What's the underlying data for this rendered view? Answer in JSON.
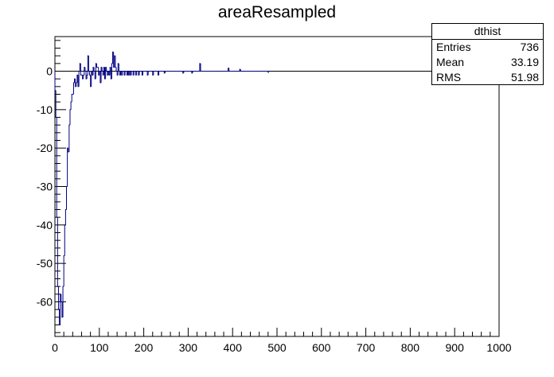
{
  "chart_data": {
    "type": "histogram",
    "title": "areaResampled",
    "xlabel": "",
    "ylabel": "",
    "xlim": [
      0,
      1000
    ],
    "ylim": [
      -69,
      9
    ],
    "x_ticks": [
      "0",
      "100",
      "200",
      "300",
      "400",
      "500",
      "600",
      "700",
      "800",
      "900",
      "1000"
    ],
    "y_ticks": [
      "-60",
      "-50",
      "-40",
      "-30",
      "-20",
      "-10",
      "0"
    ],
    "line_color": "#000080",
    "bin_width": 2,
    "bins": [
      [
        0,
        -5
      ],
      [
        2,
        -12
      ],
      [
        4,
        -38
      ],
      [
        6,
        -56
      ],
      [
        8,
        -62
      ],
      [
        10,
        -66
      ],
      [
        12,
        -58
      ],
      [
        14,
        -60
      ],
      [
        16,
        -64
      ],
      [
        18,
        -56
      ],
      [
        20,
        -48
      ],
      [
        22,
        -40
      ],
      [
        24,
        -36
      ],
      [
        26,
        -30
      ],
      [
        28,
        -20
      ],
      [
        30,
        -21
      ],
      [
        32,
        -14
      ],
      [
        34,
        -10
      ],
      [
        36,
        -8
      ],
      [
        38,
        -6
      ],
      [
        40,
        -6
      ],
      [
        42,
        -3
      ],
      [
        44,
        -2
      ],
      [
        46,
        -4
      ],
      [
        48,
        -3
      ],
      [
        50,
        -1
      ],
      [
        52,
        -4
      ],
      [
        54,
        0
      ],
      [
        56,
        2
      ],
      [
        58,
        -1
      ],
      [
        60,
        -1
      ],
      [
        62,
        -2
      ],
      [
        64,
        -1
      ],
      [
        66,
        1
      ],
      [
        68,
        0
      ],
      [
        70,
        -2
      ],
      [
        72,
        -1
      ],
      [
        74,
        4
      ],
      [
        76,
        0
      ],
      [
        78,
        -1
      ],
      [
        80,
        -4
      ],
      [
        82,
        0
      ],
      [
        84,
        -1
      ],
      [
        86,
        1
      ],
      [
        88,
        0
      ],
      [
        90,
        -2
      ],
      [
        92,
        2
      ],
      [
        94,
        1
      ],
      [
        96,
        1
      ],
      [
        98,
        -1
      ],
      [
        100,
        0
      ],
      [
        102,
        -3
      ],
      [
        104,
        1
      ],
      [
        106,
        0
      ],
      [
        108,
        -1
      ],
      [
        110,
        1
      ],
      [
        112,
        -2
      ],
      [
        114,
        1
      ],
      [
        116,
        0
      ],
      [
        118,
        -1
      ],
      [
        120,
        0
      ],
      [
        122,
        -1
      ],
      [
        124,
        1
      ],
      [
        126,
        -2
      ],
      [
        128,
        2
      ],
      [
        130,
        5
      ],
      [
        132,
        1
      ],
      [
        134,
        4
      ],
      [
        136,
        1
      ],
      [
        138,
        0
      ],
      [
        140,
        -1
      ],
      [
        142,
        2
      ],
      [
        144,
        0
      ],
      [
        146,
        -1
      ],
      [
        148,
        0
      ],
      [
        150,
        -1
      ],
      [
        152,
        0
      ],
      [
        154,
        0
      ],
      [
        156,
        -1
      ],
      [
        158,
        0
      ],
      [
        160,
        0
      ],
      [
        162,
        -1
      ],
      [
        164,
        0
      ],
      [
        166,
        -1
      ],
      [
        168,
        0
      ],
      [
        170,
        -1
      ],
      [
        172,
        0
      ],
      [
        174,
        0
      ],
      [
        176,
        -1
      ],
      [
        178,
        0
      ],
      [
        180,
        0
      ],
      [
        182,
        -1
      ],
      [
        184,
        0
      ],
      [
        186,
        0
      ],
      [
        188,
        -1
      ],
      [
        190,
        0
      ],
      [
        192,
        0
      ],
      [
        194,
        0
      ],
      [
        196,
        -1
      ],
      [
        198,
        0
      ],
      [
        200,
        0
      ],
      [
        202,
        0
      ],
      [
        204,
        0
      ],
      [
        206,
        0
      ],
      [
        208,
        -1
      ],
      [
        210,
        0
      ],
      [
        212,
        0
      ],
      [
        214,
        0
      ],
      [
        216,
        0
      ],
      [
        218,
        0
      ],
      [
        220,
        -1
      ],
      [
        222,
        0
      ],
      [
        224,
        0
      ],
      [
        226,
        0
      ],
      [
        228,
        0
      ],
      [
        230,
        0
      ],
      [
        232,
        -1
      ],
      [
        234,
        0
      ],
      [
        236,
        0
      ],
      [
        238,
        0
      ],
      [
        240,
        0
      ],
      [
        242,
        0
      ],
      [
        244,
        0
      ],
      [
        246,
        -0.5
      ],
      [
        248,
        0
      ],
      [
        250,
        0
      ],
      [
        252,
        0
      ],
      [
        254,
        0
      ],
      [
        256,
        0
      ],
      [
        258,
        0
      ],
      [
        260,
        0
      ],
      [
        262,
        0
      ],
      [
        264,
        0
      ],
      [
        266,
        0
      ],
      [
        268,
        0
      ],
      [
        270,
        0
      ],
      [
        272,
        0
      ],
      [
        274,
        0
      ],
      [
        276,
        0
      ],
      [
        278,
        0
      ],
      [
        280,
        0
      ],
      [
        282,
        0
      ],
      [
        284,
        0
      ],
      [
        286,
        0
      ],
      [
        288,
        -0.5
      ],
      [
        290,
        0
      ],
      [
        292,
        0
      ],
      [
        294,
        0
      ],
      [
        296,
        0
      ],
      [
        298,
        0
      ],
      [
        300,
        0
      ],
      [
        302,
        0
      ],
      [
        304,
        0
      ],
      [
        306,
        0
      ],
      [
        308,
        -0.5
      ],
      [
        310,
        0
      ],
      [
        312,
        0
      ],
      [
        314,
        0
      ],
      [
        316,
        0
      ],
      [
        318,
        0
      ],
      [
        320,
        0
      ],
      [
        322,
        0
      ],
      [
        324,
        0
      ],
      [
        326,
        2
      ],
      [
        328,
        0
      ],
      [
        330,
        0
      ],
      [
        332,
        0
      ],
      [
        334,
        0
      ],
      [
        336,
        0
      ],
      [
        338,
        0
      ],
      [
        340,
        0
      ],
      [
        342,
        0
      ],
      [
        344,
        0
      ],
      [
        346,
        0
      ],
      [
        348,
        0
      ],
      [
        350,
        0
      ],
      [
        352,
        0
      ],
      [
        354,
        0
      ],
      [
        356,
        0
      ],
      [
        358,
        0
      ],
      [
        360,
        0
      ],
      [
        362,
        0
      ],
      [
        364,
        0
      ],
      [
        366,
        0
      ],
      [
        368,
        0
      ],
      [
        370,
        0
      ],
      [
        372,
        0
      ],
      [
        374,
        0
      ],
      [
        376,
        0
      ],
      [
        378,
        0
      ],
      [
        380,
        0
      ],
      [
        382,
        0
      ],
      [
        384,
        0
      ],
      [
        386,
        0
      ],
      [
        388,
        0
      ],
      [
        390,
        0.8
      ],
      [
        392,
        0
      ],
      [
        394,
        0
      ],
      [
        396,
        0
      ],
      [
        398,
        0
      ],
      [
        400,
        0
      ],
      [
        402,
        0
      ],
      [
        404,
        0
      ],
      [
        406,
        0
      ],
      [
        408,
        0
      ],
      [
        410,
        0
      ],
      [
        412,
        0
      ],
      [
        414,
        0
      ],
      [
        416,
        0.5
      ],
      [
        418,
        0
      ],
      [
        420,
        0
      ],
      [
        422,
        0
      ],
      [
        424,
        0
      ],
      [
        426,
        0
      ],
      [
        428,
        0
      ],
      [
        430,
        0
      ],
      [
        432,
        0
      ],
      [
        434,
        0
      ],
      [
        436,
        0
      ],
      [
        438,
        0
      ],
      [
        440,
        0
      ],
      [
        442,
        0
      ],
      [
        444,
        0
      ],
      [
        446,
        0
      ],
      [
        448,
        0
      ],
      [
        450,
        0
      ],
      [
        452,
        0
      ],
      [
        454,
        0
      ],
      [
        456,
        0
      ],
      [
        458,
        0
      ],
      [
        460,
        0
      ],
      [
        462,
        0
      ],
      [
        464,
        0
      ],
      [
        466,
        0
      ],
      [
        468,
        0
      ],
      [
        470,
        0
      ],
      [
        472,
        0
      ],
      [
        474,
        0
      ],
      [
        476,
        0
      ],
      [
        478,
        0
      ],
      [
        480,
        -0.3
      ]
    ],
    "stats_box": {
      "name": "dthist",
      "rows": [
        {
          "label": "Entries",
          "value": "736"
        },
        {
          "label": "Mean",
          "value": "33.19"
        },
        {
          "label": "RMS",
          "value": "51.98"
        }
      ]
    }
  }
}
